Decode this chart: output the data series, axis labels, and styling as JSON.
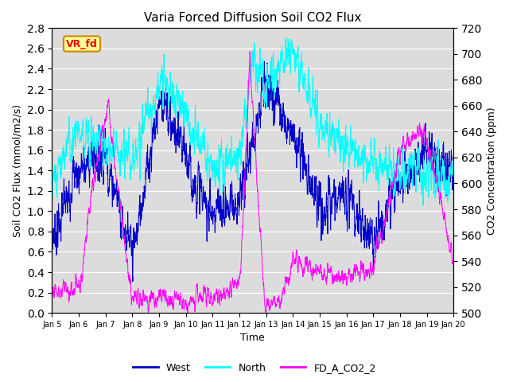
{
  "title": "Varia Forced Diffusion Soil CO2 Flux",
  "xlabel": "Time",
  "ylabel_left": "Soil CO2 Flux (mmol/m2/s)",
  "ylabel_right": "CO2 Concentration (ppm)",
  "ylim_left": [
    0.0,
    2.8
  ],
  "ylim_right": [
    500,
    720
  ],
  "color_west": "#0000CD",
  "color_north": "#00FFFF",
  "color_co2": "#FF00FF",
  "legend_labels": [
    "West",
    "North",
    "FD_A_CO2_2"
  ],
  "annotation_text": "VR_fd",
  "annotation_bg": "#FFFF99",
  "annotation_border": "#CC8800",
  "background_color": "#DCDCDC",
  "n_points": 3000,
  "x_start": 5.0,
  "x_end": 20.0,
  "xtick_positions": [
    5,
    6,
    7,
    8,
    9,
    10,
    11,
    12,
    13,
    14,
    15,
    16,
    17,
    18,
    19,
    20
  ],
  "xtick_labels": [
    "Jan 5",
    "Jan 6",
    "Jan 7",
    "Jan 8",
    "Jan 9",
    "Jan 10",
    "Jan 11",
    "Jan 12",
    "Jan 13",
    "Jan 14",
    "Jan 15",
    "Jan 16",
    "Jan 17",
    "Jan 18",
    "Jan 19",
    "Jan 20"
  ]
}
